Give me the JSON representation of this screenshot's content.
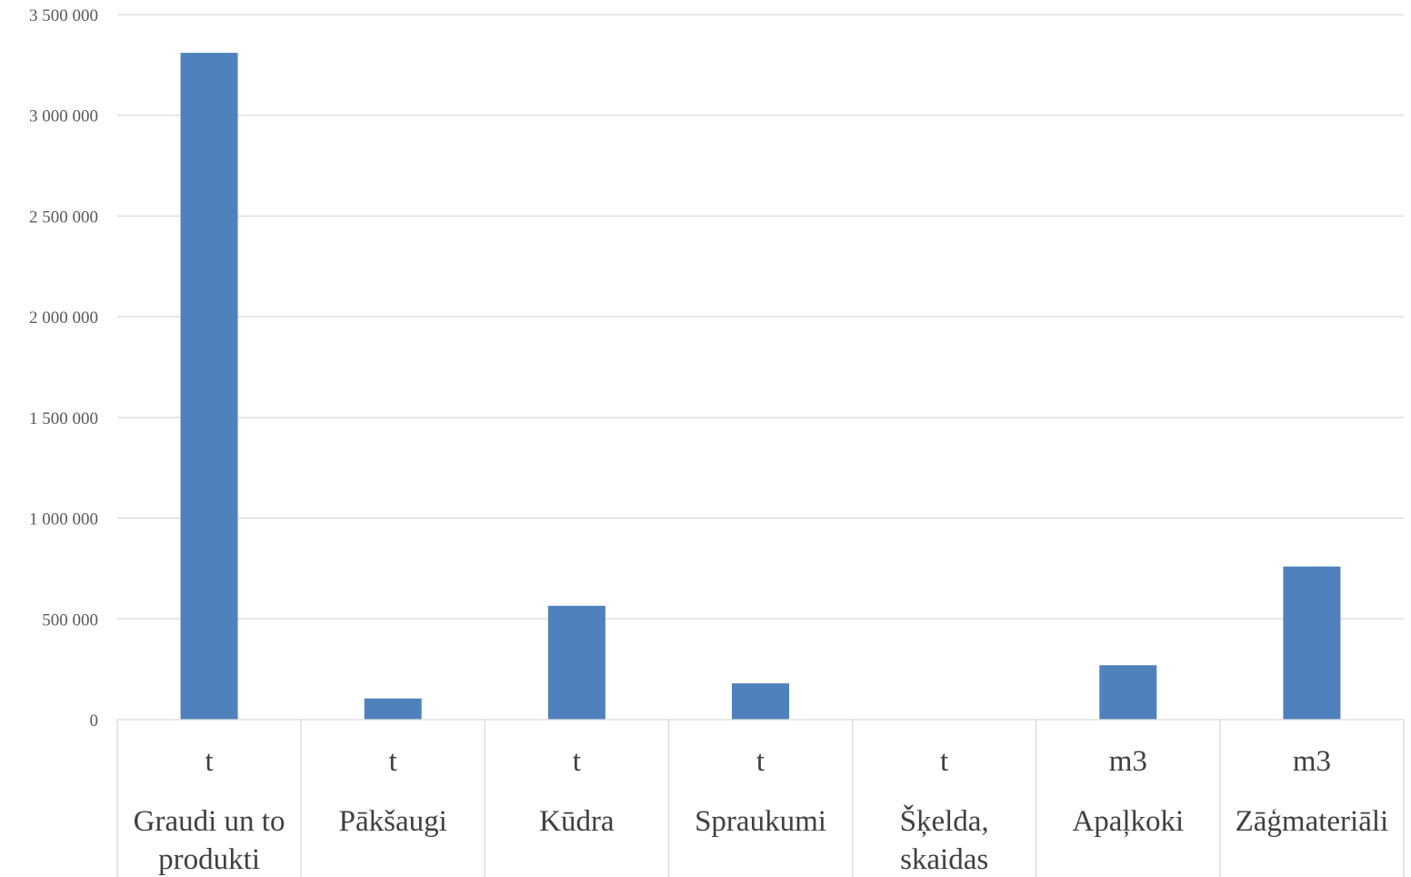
{
  "chart_data": {
    "type": "bar",
    "title": "",
    "xlabel": "",
    "ylabel": "",
    "ylim": [
      0,
      3500000
    ],
    "yticks": [
      0,
      500000,
      1000000,
      1500000,
      2000000,
      2500000,
      3000000,
      3500000
    ],
    "ytick_labels": [
      "0",
      "500 000",
      "1 000 000",
      "1 500 000",
      "2 000 000",
      "2 500 000",
      "3 000 000",
      "3 500 000"
    ],
    "grid": true,
    "legend": "none",
    "bar_color": "#4F81BD",
    "categories": [
      {
        "unit": "t",
        "name_lines": [
          "Graudi un to",
          "produkti"
        ]
      },
      {
        "unit": "t",
        "name_lines": [
          "Pākšaugi"
        ]
      },
      {
        "unit": "t",
        "name_lines": [
          "Kūdra"
        ]
      },
      {
        "unit": "t",
        "name_lines": [
          "Spraukumi"
        ]
      },
      {
        "unit": "t",
        "name_lines": [
          "Šķelda,",
          "skaidas"
        ]
      },
      {
        "unit": "m3",
        "name_lines": [
          "Apaļkoki"
        ]
      },
      {
        "unit": "m3",
        "name_lines": [
          "Zāģmateriāli"
        ]
      }
    ],
    "values": [
      3310000,
      105000,
      565000,
      180000,
      0,
      270000,
      760000
    ]
  }
}
